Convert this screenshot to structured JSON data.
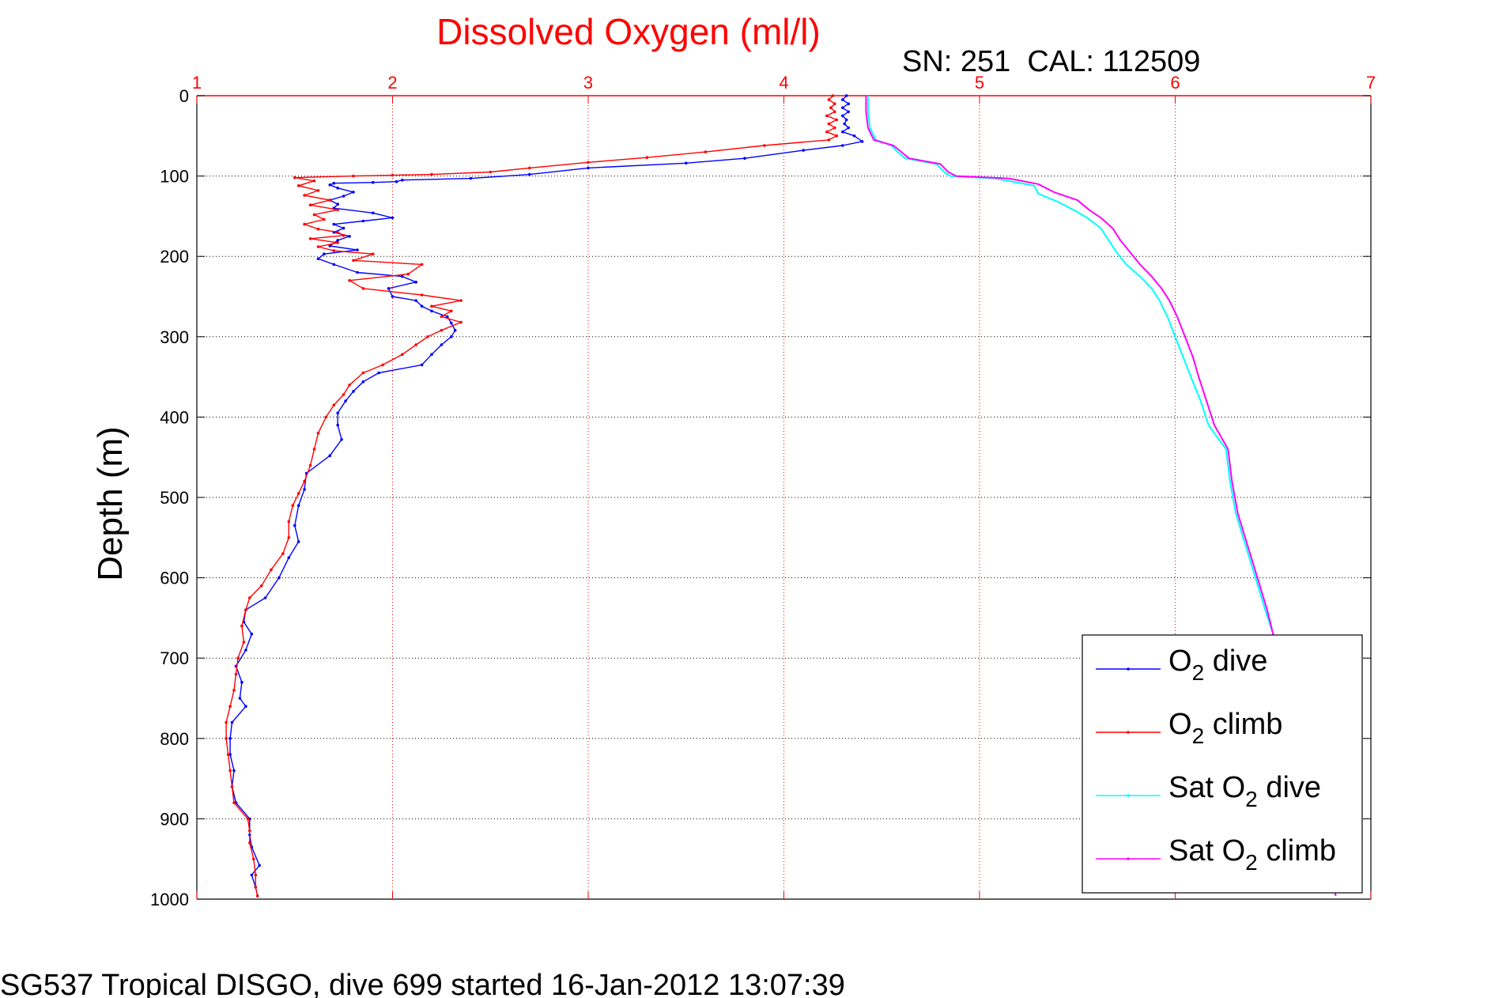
{
  "chart_data": {
    "type": "line",
    "title": "Dissolved Oxygen (ml/l)",
    "subtitle": "SN: 251  CAL: 112509",
    "ylabel": "Depth (m)",
    "footer": "SG537 Tropical DISGO, dive 699 started 16-Jan-2012 13:07:39",
    "xlim": [
      1,
      7
    ],
    "ylim": [
      0,
      1000
    ],
    "y_reversed": true,
    "x_axis_position": "top",
    "grid": true,
    "xticks": [
      "1",
      "2",
      "3",
      "4",
      "5",
      "6",
      "7"
    ],
    "yticks": [
      "0",
      "100",
      "200",
      "300",
      "400",
      "500",
      "600",
      "700",
      "800",
      "900",
      "1000"
    ],
    "legend": {
      "placement": "bottom-right",
      "entries": [
        {
          "base": "O",
          "sub": "2",
          "suffix": " dive",
          "prefix": ""
        },
        {
          "base": "O",
          "sub": "2",
          "suffix": " climb",
          "prefix": ""
        },
        {
          "base": "O",
          "sub": "2",
          "suffix": " dive",
          "prefix": "Sat "
        },
        {
          "base": "O",
          "sub": "2",
          "suffix": " climb",
          "prefix": "Sat "
        }
      ]
    },
    "colors": {
      "title": "#ff0000",
      "xaxis": "#ff0000",
      "grid_x": "#ff0000",
      "grid_y": "#000000",
      "o2_dive": "#0000ff",
      "o2_climb": "#ff0000",
      "sat_dive": "#00ffff",
      "sat_climb": "#ff00ff"
    },
    "series": [
      {
        "name": "O2 dive",
        "style": "dotline",
        "points": [
          [
            4.32,
            0
          ],
          [
            4.3,
            5
          ],
          [
            4.33,
            10
          ],
          [
            4.3,
            15
          ],
          [
            4.33,
            20
          ],
          [
            4.3,
            25
          ],
          [
            4.32,
            30
          ],
          [
            4.31,
            35
          ],
          [
            4.33,
            40
          ],
          [
            4.3,
            45
          ],
          [
            4.36,
            50
          ],
          [
            4.4,
            57
          ],
          [
            4.3,
            62
          ],
          [
            4.1,
            68
          ],
          [
            3.8,
            78
          ],
          [
            3.5,
            84
          ],
          [
            3.0,
            90
          ],
          [
            2.7,
            98
          ],
          [
            2.4,
            103
          ],
          [
            2.05,
            105
          ],
          [
            2.02,
            107
          ],
          [
            1.9,
            108
          ],
          [
            1.7,
            109
          ],
          [
            1.68,
            111
          ],
          [
            1.72,
            115
          ],
          [
            1.8,
            120
          ],
          [
            1.75,
            125
          ],
          [
            1.68,
            130
          ],
          [
            1.72,
            135
          ],
          [
            1.7,
            140
          ],
          [
            1.9,
            146
          ],
          [
            2.0,
            152
          ],
          [
            1.85,
            156
          ],
          [
            1.7,
            160
          ],
          [
            1.75,
            165
          ],
          [
            1.7,
            170
          ],
          [
            1.78,
            175
          ],
          [
            1.72,
            180
          ],
          [
            1.68,
            187
          ],
          [
            1.82,
            192
          ],
          [
            1.65,
            197
          ],
          [
            1.62,
            203
          ],
          [
            1.7,
            210
          ],
          [
            1.82,
            220
          ],
          [
            2.05,
            225
          ],
          [
            2.12,
            232
          ],
          [
            1.98,
            240
          ],
          [
            2.0,
            250
          ],
          [
            2.12,
            255
          ],
          [
            2.15,
            262
          ],
          [
            2.2,
            268
          ],
          [
            2.28,
            275
          ],
          [
            2.3,
            283
          ],
          [
            2.32,
            292
          ],
          [
            2.3,
            300
          ],
          [
            2.25,
            310
          ],
          [
            2.2,
            322
          ],
          [
            2.15,
            335
          ],
          [
            1.93,
            345
          ],
          [
            1.85,
            356
          ],
          [
            1.8,
            368
          ],
          [
            1.76,
            380
          ],
          [
            1.72,
            395
          ],
          [
            1.72,
            410
          ],
          [
            1.74,
            428
          ],
          [
            1.68,
            448
          ],
          [
            1.56,
            470
          ],
          [
            1.55,
            490
          ],
          [
            1.52,
            510
          ],
          [
            1.5,
            535
          ],
          [
            1.52,
            555
          ],
          [
            1.47,
            575
          ],
          [
            1.42,
            600
          ],
          [
            1.35,
            625
          ],
          [
            1.25,
            640
          ],
          [
            1.24,
            655
          ],
          [
            1.28,
            670
          ],
          [
            1.25,
            690
          ],
          [
            1.2,
            710
          ],
          [
            1.23,
            730
          ],
          [
            1.22,
            750
          ],
          [
            1.25,
            760
          ],
          [
            1.18,
            780
          ],
          [
            1.17,
            800
          ],
          [
            1.17,
            820
          ],
          [
            1.19,
            840
          ],
          [
            1.18,
            860
          ],
          [
            1.2,
            880
          ],
          [
            1.27,
            900
          ],
          [
            1.27,
            920
          ],
          [
            1.28,
            935
          ],
          [
            1.32,
            958
          ],
          [
            1.28,
            970
          ],
          [
            1.3,
            985
          ],
          [
            1.31,
            996
          ]
        ]
      },
      {
        "name": "O2 climb",
        "style": "dotline",
        "points": [
          [
            4.25,
            0
          ],
          [
            4.23,
            5
          ],
          [
            4.26,
            10
          ],
          [
            4.24,
            15
          ],
          [
            4.26,
            20
          ],
          [
            4.22,
            25
          ],
          [
            4.27,
            30
          ],
          [
            4.23,
            35
          ],
          [
            4.26,
            40
          ],
          [
            4.22,
            45
          ],
          [
            4.27,
            50
          ],
          [
            4.23,
            55
          ],
          [
            3.9,
            62
          ],
          [
            3.6,
            70
          ],
          [
            3.3,
            77
          ],
          [
            3.0,
            83
          ],
          [
            2.7,
            90
          ],
          [
            2.5,
            95
          ],
          [
            2.2,
            98
          ],
          [
            2.0,
            99
          ],
          [
            1.8,
            100
          ],
          [
            1.5,
            102
          ],
          [
            1.6,
            106
          ],
          [
            1.52,
            112
          ],
          [
            1.62,
            118
          ],
          [
            1.55,
            124
          ],
          [
            1.68,
            130
          ],
          [
            1.58,
            136
          ],
          [
            1.72,
            142
          ],
          [
            1.6,
            148
          ],
          [
            1.65,
            154
          ],
          [
            1.55,
            160
          ],
          [
            1.62,
            166
          ],
          [
            1.72,
            170
          ],
          [
            1.75,
            174
          ],
          [
            1.58,
            178
          ],
          [
            1.72,
            183
          ],
          [
            1.62,
            188
          ],
          [
            1.7,
            193
          ],
          [
            1.9,
            197
          ],
          [
            1.8,
            205
          ],
          [
            2.15,
            210
          ],
          [
            2.08,
            222
          ],
          [
            1.78,
            230
          ],
          [
            1.85,
            240
          ],
          [
            2.15,
            248
          ],
          [
            2.35,
            255
          ],
          [
            2.2,
            262
          ],
          [
            2.3,
            268
          ],
          [
            2.25,
            275
          ],
          [
            2.35,
            282
          ],
          [
            2.25,
            292
          ],
          [
            2.18,
            300
          ],
          [
            2.12,
            310
          ],
          [
            2.05,
            322
          ],
          [
            1.95,
            335
          ],
          [
            1.85,
            345
          ],
          [
            1.78,
            360
          ],
          [
            1.75,
            372
          ],
          [
            1.7,
            385
          ],
          [
            1.66,
            400
          ],
          [
            1.62,
            420
          ],
          [
            1.6,
            440
          ],
          [
            1.58,
            460
          ],
          [
            1.55,
            480
          ],
          [
            1.52,
            495
          ],
          [
            1.49,
            510
          ],
          [
            1.47,
            530
          ],
          [
            1.47,
            550
          ],
          [
            1.44,
            570
          ],
          [
            1.38,
            590
          ],
          [
            1.33,
            610
          ],
          [
            1.27,
            625
          ],
          [
            1.25,
            640
          ],
          [
            1.23,
            660
          ],
          [
            1.24,
            680
          ],
          [
            1.21,
            700
          ],
          [
            1.2,
            720
          ],
          [
            1.19,
            740
          ],
          [
            1.17,
            760
          ],
          [
            1.15,
            780
          ],
          [
            1.15,
            800
          ],
          [
            1.16,
            820
          ],
          [
            1.17,
            840
          ],
          [
            1.18,
            860
          ],
          [
            1.19,
            880
          ],
          [
            1.26,
            900
          ],
          [
            1.27,
            915
          ],
          [
            1.27,
            930
          ],
          [
            1.29,
            950
          ],
          [
            1.3,
            970
          ],
          [
            1.3,
            985
          ],
          [
            1.31,
            996
          ]
        ]
      },
      {
        "name": "Sat O2 dive",
        "style": "line",
        "points": [
          [
            4.43,
            0
          ],
          [
            4.43,
            20
          ],
          [
            4.44,
            40
          ],
          [
            4.47,
            55
          ],
          [
            4.55,
            62
          ],
          [
            4.58,
            70
          ],
          [
            4.62,
            78
          ],
          [
            4.78,
            85
          ],
          [
            4.82,
            95
          ],
          [
            4.85,
            100
          ],
          [
            5.08,
            103
          ],
          [
            5.28,
            112
          ],
          [
            5.3,
            122
          ],
          [
            5.4,
            132
          ],
          [
            5.48,
            142
          ],
          [
            5.55,
            152
          ],
          [
            5.62,
            165
          ],
          [
            5.66,
            180
          ],
          [
            5.7,
            195
          ],
          [
            5.75,
            210
          ],
          [
            5.82,
            225
          ],
          [
            5.88,
            240
          ],
          [
            5.92,
            255
          ],
          [
            5.96,
            275
          ],
          [
            6.0,
            300
          ],
          [
            6.04,
            325
          ],
          [
            6.08,
            350
          ],
          [
            6.13,
            380
          ],
          [
            6.17,
            410
          ],
          [
            6.26,
            440
          ],
          [
            6.28,
            480
          ],
          [
            6.31,
            520
          ],
          [
            6.36,
            560
          ],
          [
            6.41,
            600
          ],
          [
            6.46,
            640
          ],
          [
            6.5,
            670
          ],
          [
            6.54,
            700
          ],
          [
            6.57,
            740
          ],
          [
            6.61,
            780
          ],
          [
            6.65,
            820
          ],
          [
            6.69,
            860
          ],
          [
            6.73,
            900
          ],
          [
            6.77,
            940
          ],
          [
            6.81,
            980
          ],
          [
            6.82,
            996
          ]
        ]
      },
      {
        "name": "Sat O2 climb",
        "style": "line",
        "points": [
          [
            4.42,
            0
          ],
          [
            4.42,
            20
          ],
          [
            4.43,
            40
          ],
          [
            4.46,
            55
          ],
          [
            4.56,
            62
          ],
          [
            4.6,
            70
          ],
          [
            4.64,
            78
          ],
          [
            4.8,
            85
          ],
          [
            4.84,
            95
          ],
          [
            4.88,
            100
          ],
          [
            5.15,
            103
          ],
          [
            5.3,
            110
          ],
          [
            5.38,
            120
          ],
          [
            5.5,
            130
          ],
          [
            5.56,
            142
          ],
          [
            5.62,
            152
          ],
          [
            5.68,
            165
          ],
          [
            5.72,
            180
          ],
          [
            5.77,
            195
          ],
          [
            5.82,
            210
          ],
          [
            5.88,
            225
          ],
          [
            5.93,
            240
          ],
          [
            5.97,
            255
          ],
          [
            6.01,
            275
          ],
          [
            6.05,
            300
          ],
          [
            6.09,
            325
          ],
          [
            6.12,
            350
          ],
          [
            6.16,
            380
          ],
          [
            6.2,
            410
          ],
          [
            6.27,
            440
          ],
          [
            6.29,
            480
          ],
          [
            6.32,
            520
          ],
          [
            6.37,
            560
          ],
          [
            6.42,
            600
          ],
          [
            6.47,
            640
          ],
          [
            6.5,
            670
          ],
          [
            6.54,
            700
          ],
          [
            6.57,
            740
          ],
          [
            6.61,
            780
          ],
          [
            6.65,
            820
          ],
          [
            6.69,
            860
          ],
          [
            6.73,
            900
          ],
          [
            6.77,
            940
          ],
          [
            6.81,
            980
          ],
          [
            6.82,
            996
          ]
        ]
      }
    ]
  }
}
